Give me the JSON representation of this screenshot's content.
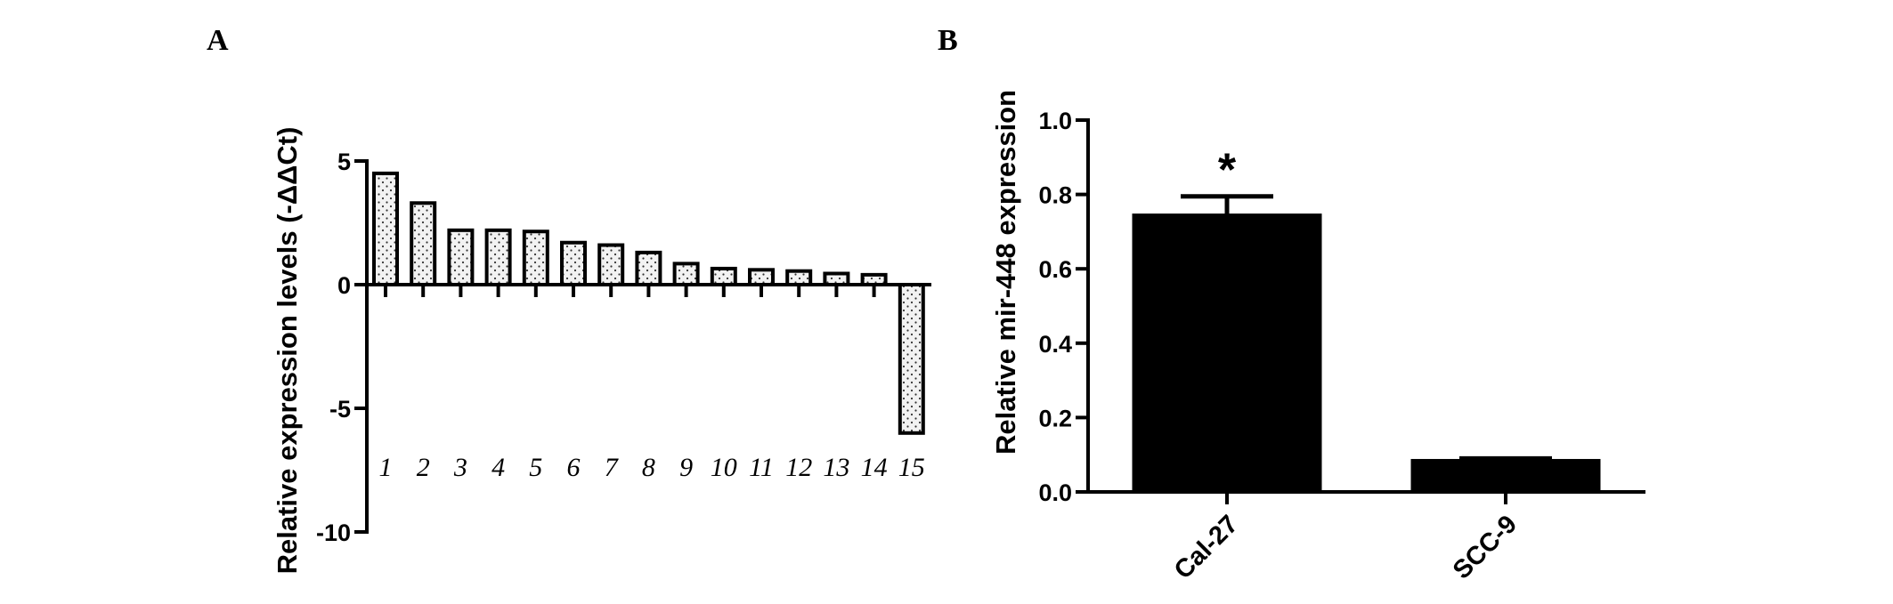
{
  "chart_data": [
    {
      "panel": "A",
      "type": "bar",
      "ylabel": "Relative expression levels (-ΔΔCt)",
      "ylim": [
        -10,
        5
      ],
      "yticks": [
        5,
        0,
        -5,
        -10
      ],
      "categories": [
        "1",
        "2",
        "3",
        "4",
        "5",
        "6",
        "7",
        "8",
        "9",
        "10",
        "11",
        "12",
        "13",
        "14",
        "15"
      ],
      "values": [
        4.5,
        3.3,
        2.2,
        2.2,
        2.15,
        1.7,
        1.6,
        1.3,
        0.85,
        0.65,
        0.6,
        0.55,
        0.45,
        0.4,
        -6.0
      ],
      "bar_fill": "dotted",
      "grid": false
    },
    {
      "panel": "B",
      "type": "bar",
      "ylabel": "Relative mir-448 expression",
      "ylim": [
        0,
        1.0
      ],
      "yticks": [
        0.0,
        0.2,
        0.4,
        0.6,
        0.8,
        1.0
      ],
      "ytick_labels": [
        "0.0",
        "0.2",
        "0.4",
        "0.6",
        "0.8",
        "1.0"
      ],
      "categories": [
        "Cal-27",
        "SCC-9"
      ],
      "values": [
        0.745,
        0.085
      ],
      "errors": [
        0.05,
        0.005
      ],
      "annotations": [
        {
          "category": "Cal-27",
          "text": "*"
        }
      ],
      "bar_fill": "#000000",
      "grid": false
    }
  ]
}
